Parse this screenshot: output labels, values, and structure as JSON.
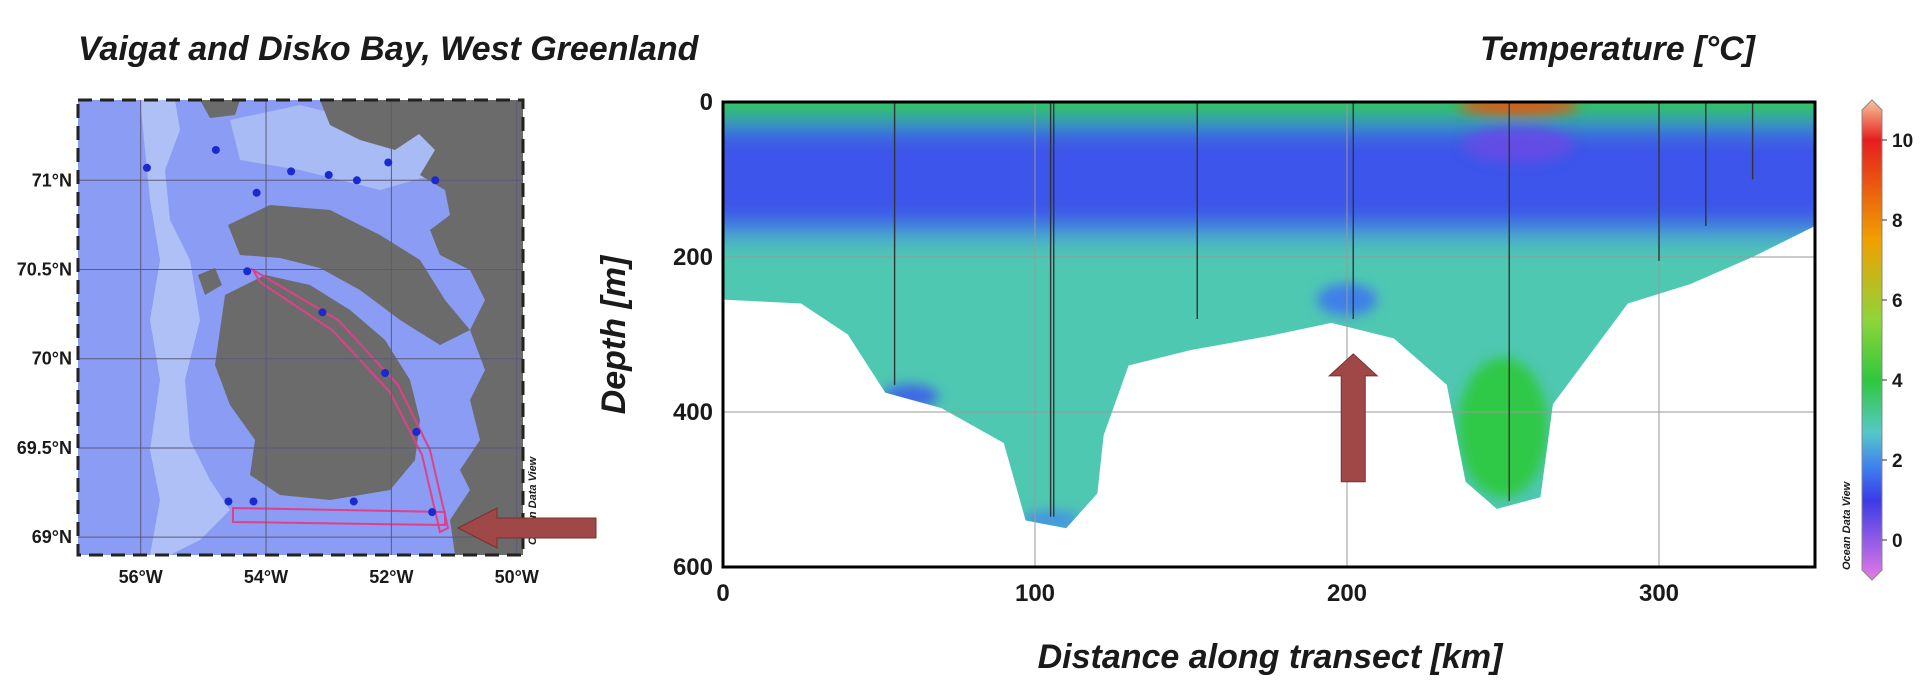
{
  "map": {
    "title": "Vaigat and  Disko Bay, West Greenland",
    "lat_ticks": [
      "71°N",
      "70.5°N",
      "70°N",
      "69.5°N",
      "69°N"
    ],
    "lon_ticks": [
      "56°W",
      "54°W",
      "52°W",
      "50°W"
    ],
    "lat_values": [
      71.0,
      70.5,
      70.0,
      69.5,
      69.0
    ],
    "lon_values": [
      -56,
      -54,
      -52,
      -50
    ],
    "watermark": "Ocean Data View",
    "stations": [
      {
        "lon": -55.9,
        "lat": 71.07
      },
      {
        "lon": -54.8,
        "lat": 71.17
      },
      {
        "lon": -54.15,
        "lat": 70.93
      },
      {
        "lon": -53.6,
        "lat": 71.05
      },
      {
        "lon": -53.0,
        "lat": 71.03
      },
      {
        "lon": -52.55,
        "lat": 71.0
      },
      {
        "lon": -52.05,
        "lat": 71.1
      },
      {
        "lon": -51.3,
        "lat": 71.0
      },
      {
        "lon": -54.3,
        "lat": 70.49
      },
      {
        "lon": -53.1,
        "lat": 70.26
      },
      {
        "lon": -52.1,
        "lat": 69.92
      },
      {
        "lon": -51.6,
        "lat": 69.59
      },
      {
        "lon": -51.35,
        "lat": 69.14
      },
      {
        "lon": -52.6,
        "lat": 69.2
      },
      {
        "lon": -54.2,
        "lat": 69.2
      },
      {
        "lon": -54.6,
        "lat": 69.2
      }
    ],
    "colors": {
      "water": "#8a9cf3",
      "land": "#6b6b6b",
      "shelf": "#b7c9f5",
      "track": "#e0408a",
      "arrow": "#a04848"
    }
  },
  "chart_data": {
    "type": "heatmap",
    "title": "Temperature [°C]",
    "xlabel": "Distance along transect [km]",
    "ylabel": "Depth [m]",
    "xlim": [
      0,
      350
    ],
    "ylim": [
      600,
      0
    ],
    "x_ticks": [
      "0",
      "100",
      "200",
      "300"
    ],
    "x_tick_values": [
      0,
      100,
      200,
      300
    ],
    "y_ticks": [
      "0",
      "200",
      "400",
      "600"
    ],
    "y_tick_values": [
      0,
      200,
      400,
      600
    ],
    "colorbar": {
      "range": [
        -1,
        11
      ],
      "ticks": [
        "10",
        "8",
        "6",
        "4",
        "2",
        "0"
      ],
      "tick_values": [
        10,
        8,
        6,
        4,
        2,
        0
      ],
      "label": "Ocean Data View",
      "stops": [
        "#e67ae6",
        "#3b3be6",
        "#3f7ff0",
        "#55c8c8",
        "#2fc83c",
        "#8fd43a",
        "#f0a000",
        "#e61e1e",
        "#f8c89a"
      ],
      "stop_values": [
        -1,
        1,
        1.8,
        2.7,
        4,
        5.5,
        7.5,
        10,
        11
      ]
    },
    "bottom_profile": [
      {
        "x": 0,
        "depth": 255
      },
      {
        "x": 25,
        "depth": 260
      },
      {
        "x": 40,
        "depth": 300
      },
      {
        "x": 52,
        "depth": 375
      },
      {
        "x": 70,
        "depth": 395
      },
      {
        "x": 90,
        "depth": 440
      },
      {
        "x": 97,
        "depth": 540
      },
      {
        "x": 110,
        "depth": 550
      },
      {
        "x": 120,
        "depth": 505
      },
      {
        "x": 122,
        "depth": 430
      },
      {
        "x": 130,
        "depth": 340
      },
      {
        "x": 150,
        "depth": 320
      },
      {
        "x": 175,
        "depth": 302
      },
      {
        "x": 195,
        "depth": 285
      },
      {
        "x": 215,
        "depth": 305
      },
      {
        "x": 232,
        "depth": 365
      },
      {
        "x": 238,
        "depth": 490
      },
      {
        "x": 248,
        "depth": 525
      },
      {
        "x": 262,
        "depth": 510
      },
      {
        "x": 266,
        "depth": 390
      },
      {
        "x": 290,
        "depth": 260
      },
      {
        "x": 310,
        "depth": 235
      },
      {
        "x": 330,
        "depth": 200
      },
      {
        "x": 350,
        "depth": 160
      }
    ],
    "station_x": [
      55,
      105,
      106,
      152,
      202,
      252,
      300,
      315,
      330
    ],
    "station_max_depth": [
      365,
      535,
      535,
      280,
      280,
      515,
      205,
      160,
      100
    ],
    "layers": [
      {
        "name": "surface",
        "depth_top": 0,
        "depth_bottom": 25,
        "value": 4.0
      },
      {
        "name": "cold core",
        "depth_top": 25,
        "depth_bottom": 170,
        "value": 1.3
      },
      {
        "name": "intermediate",
        "depth_top": 170,
        "depth_bottom": 600,
        "value": 2.9
      }
    ],
    "features": [
      {
        "x": 255,
        "depth": 5,
        "value": 9
      },
      {
        "x": 255,
        "depth": 55,
        "value": 0.5
      },
      {
        "x": 200,
        "depth": 255,
        "value": 1.7
      },
      {
        "x": 60,
        "depth": 380,
        "value": 1.4
      },
      {
        "x": 250,
        "depth": 420,
        "value": 4.0
      },
      {
        "x": 105,
        "depth": 540,
        "value": 2.0
      }
    ],
    "annotation": {
      "type": "arrow",
      "x": 202,
      "depth_tip": 325,
      "depth_tail": 490,
      "direction": "up"
    }
  }
}
